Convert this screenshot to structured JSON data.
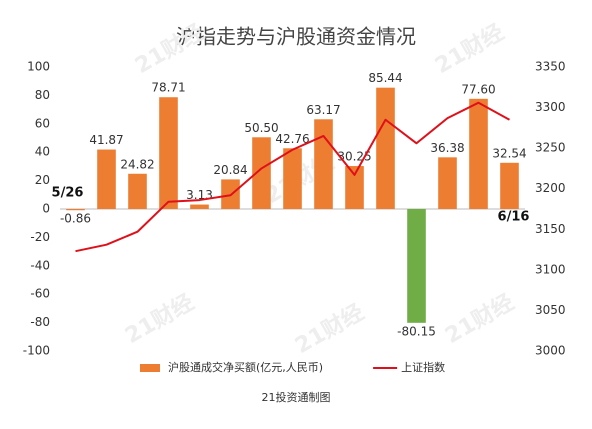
{
  "chart_data": {
    "type": "bar_line",
    "title": "沪指走势与沪股通资金情况",
    "footer": "21投资通制图",
    "watermark": "21财经",
    "categories": [
      "5/26",
      null,
      null,
      null,
      null,
      null,
      null,
      null,
      null,
      null,
      null,
      null,
      null,
      null,
      "6/16"
    ],
    "series": [
      {
        "name": "沪股通成交净买额(亿元,人民币)",
        "type": "bar",
        "color": "#ed7d31",
        "colors": [
          "#ed7d31",
          "#ed7d31",
          "#ed7d31",
          "#ed7d31",
          "#ed7d31",
          "#ed7d31",
          "#ed7d31",
          "#ed7d31",
          "#ed7d31",
          "#ed7d31",
          "#ed7d31",
          "#70ad47",
          "#ed7d31",
          "#ed7d31",
          "#ed7d31"
        ],
        "values": [
          -0.86,
          41.87,
          24.82,
          78.71,
          3.13,
          20.84,
          50.5,
          42.76,
          63.17,
          30.25,
          85.44,
          -80.15,
          36.38,
          77.6,
          32.54
        ],
        "value_labels": [
          "-0.86",
          "41.87",
          "24.82",
          "78.71",
          "3.13",
          "20.84",
          "50.50",
          "42.76",
          "63.17",
          "30.25",
          "85.44",
          "-80.15",
          "36.38",
          "77.60",
          "32.54"
        ]
      },
      {
        "name": "上证指数",
        "type": "line",
        "color": "#e0101a",
        "axis": "y2",
        "values": [
          3123,
          3131,
          3147,
          3184,
          3186,
          3192,
          3225,
          3248,
          3265,
          3217,
          3285,
          3256,
          3287,
          3306,
          3285
        ]
      }
    ],
    "ylim": [
      -100,
      100
    ],
    "yticks": [
      -100,
      -80,
      -60,
      -40,
      -20,
      0,
      20,
      40,
      60,
      80,
      100
    ],
    "y2lim": [
      3000,
      3350
    ],
    "y2ticks": [
      3000,
      3050,
      3100,
      3150,
      3200,
      3250,
      3300,
      3350
    ],
    "grid": false
  }
}
